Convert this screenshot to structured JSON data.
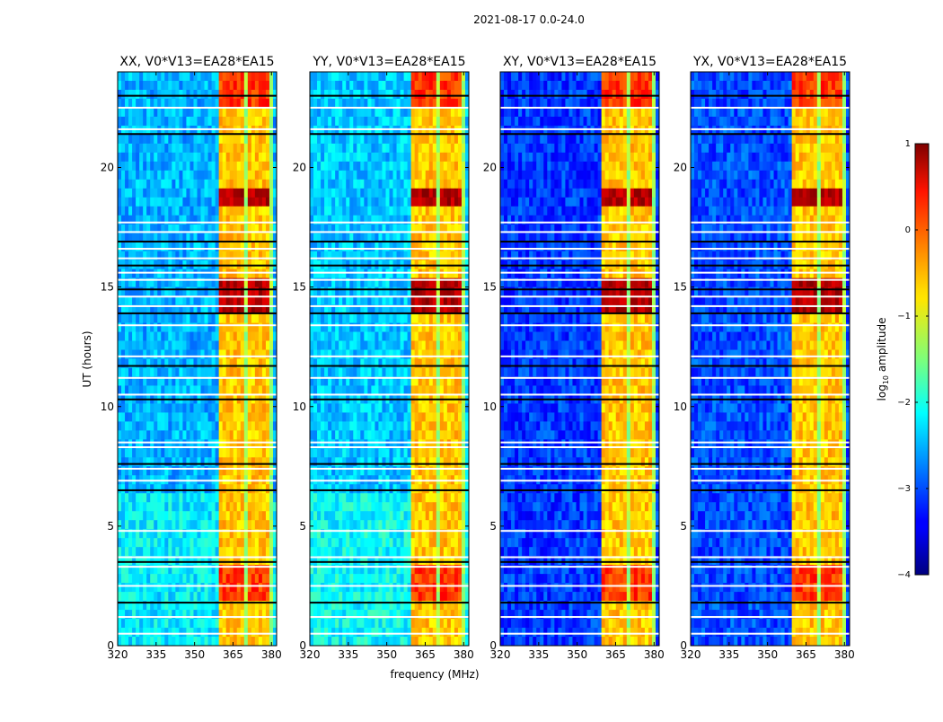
{
  "figure": {
    "suptitle": "2021-08-17 0.0-24.0",
    "xlabel": "frequency (MHz)",
    "ylabel": "UT (hours)"
  },
  "chart_data": {
    "type": "heatmap",
    "x_unit": "MHz",
    "y_unit": "hours",
    "xlim": [
      320,
      382
    ],
    "ylim": [
      0,
      24
    ],
    "x_ticks": [
      320,
      335,
      350,
      365,
      380
    ],
    "y_ticks": [
      0,
      5,
      10,
      15,
      20
    ],
    "rfi_band_mhz": [
      360,
      380
    ],
    "rfi_subband_edges_mhz": [
      360,
      364.5,
      365.5,
      369.5,
      370.5,
      374.5,
      375.5,
      379.5
    ],
    "high_activity_hours": [
      {
        "start": 18.4,
        "end": 19.3,
        "level": "high"
      },
      {
        "start": 14.0,
        "end": 15.4,
        "level": "high"
      },
      {
        "start": 2.0,
        "end": 3.3,
        "level": "medium"
      },
      {
        "start": 22.4,
        "end": 24.0,
        "level": "medium"
      }
    ],
    "flagged_hours": [
      23.0,
      22.5,
      21.6,
      21.4,
      17.7,
      17.3,
      16.9,
      16.6,
      16.2,
      15.9,
      15.6,
      15.3,
      14.9,
      14.6,
      14.2,
      13.9,
      13.4,
      12.1,
      11.7,
      11.2,
      10.5,
      10.3,
      8.5,
      8.3,
      7.6,
      7.4,
      6.9,
      6.5,
      4.8,
      3.7,
      3.5,
      3.3,
      2.5,
      1.8,
      1.2,
      0.5
    ],
    "panels": [
      {
        "title": "XX, V0*V13=EA28*EA15",
        "quiet_level": 0.3
      },
      {
        "title": "YY, V0*V13=EA28*EA15",
        "quiet_level": 0.32
      },
      {
        "title": "XY, V0*V13=EA28*EA15",
        "quiet_level": 0.18
      },
      {
        "title": "YX, V0*V13=EA28*EA15",
        "quiet_level": 0.2
      }
    ],
    "colorbar": {
      "label_prefix": "log",
      "label_subscript": "10",
      "label_suffix": " amplitude",
      "range": [
        -4,
        1
      ],
      "ticks": [
        1,
        0,
        -1,
        -2,
        -3,
        -4
      ],
      "tick_labels": [
        "1",
        "0",
        "−1",
        "−2",
        "−3",
        "−4"
      ],
      "colormap": "jet"
    }
  }
}
